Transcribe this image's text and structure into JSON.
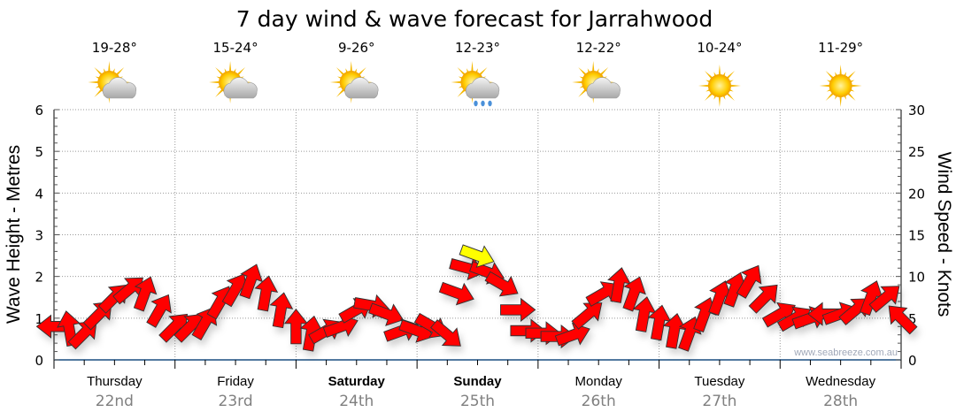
{
  "chart_data": {
    "type": "scatter",
    "title": "7 day wind & wave forecast for Jarrahwood",
    "ylabel_left": "Wave Height - Metres",
    "ylabel_right": "Wind Speed - Knots",
    "ylim_left": [
      0,
      6
    ],
    "ylim_right": [
      0,
      30
    ],
    "left_ticks": [
      "0",
      "1",
      "2",
      "3",
      "4",
      "5",
      "6"
    ],
    "right_ticks": [
      "0",
      "5",
      "10",
      "15",
      "20",
      "25",
      "30"
    ],
    "watermark": "www.seabreeze.com.au",
    "grid": true,
    "days": [
      {
        "name": "Thursday",
        "date": "22nd",
        "temp": "19-28°",
        "icon": "partly-cloudy-icon",
        "bold": false
      },
      {
        "name": "Friday",
        "date": "23rd",
        "temp": "15-24°",
        "icon": "partly-cloudy-icon",
        "bold": false
      },
      {
        "name": "Saturday",
        "date": "24th",
        "temp": "9-26°",
        "icon": "partly-cloudy-icon",
        "bold": true
      },
      {
        "name": "Sunday",
        "date": "25th",
        "temp": "12-23°",
        "icon": "rain-icon",
        "bold": true
      },
      {
        "name": "Monday",
        "date": "26th",
        "temp": "12-22°",
        "icon": "partly-cloudy-icon",
        "bold": false
      },
      {
        "name": "Tuesday",
        "date": "27th",
        "temp": "10-24°",
        "icon": "sunny-icon",
        "bold": false
      },
      {
        "name": "Wednesday",
        "date": "28th",
        "temp": "11-29°",
        "icon": "sunny-icon",
        "bold": false
      }
    ],
    "wind": [
      [
        0,
        4,
        180
      ],
      [
        3,
        3.8,
        -100
      ],
      [
        6,
        3.2,
        -45
      ],
      [
        9,
        5.5,
        -45
      ],
      [
        12,
        7.5,
        -45
      ],
      [
        15,
        8.5,
        -40
      ],
      [
        18,
        8,
        -70
      ],
      [
        21,
        6,
        -60
      ],
      [
        24,
        4,
        -45
      ],
      [
        27,
        4,
        -45
      ],
      [
        30,
        4.5,
        -60
      ],
      [
        33,
        7,
        -60
      ],
      [
        36,
        8.5,
        -60
      ],
      [
        39,
        9.5,
        -70
      ],
      [
        42,
        8,
        -80
      ],
      [
        45,
        6,
        -80
      ],
      [
        48,
        4,
        -90
      ],
      [
        51,
        3.2,
        -80
      ],
      [
        54,
        3.5,
        -30
      ],
      [
        57,
        4,
        -20
      ],
      [
        60,
        6,
        -30
      ],
      [
        63,
        6.5,
        10
      ],
      [
        66,
        5.5,
        20
      ],
      [
        69,
        3.5,
        -20
      ],
      [
        72,
        3.5,
        20
      ],
      [
        75,
        4,
        30
      ],
      [
        78,
        3,
        40
      ],
      [
        80,
        8,
        20
      ],
      [
        82,
        11,
        15
      ],
      [
        86,
        10.5,
        20
      ],
      [
        89,
        9,
        30
      ],
      [
        92,
        6,
        0
      ],
      [
        94,
        3.5,
        0
      ],
      [
        97,
        3.2,
        0
      ],
      [
        100,
        2.8,
        0
      ],
      [
        103,
        3,
        -20
      ],
      [
        106,
        5.5,
        -40
      ],
      [
        109,
        8,
        -30
      ],
      [
        112,
        9,
        -80
      ],
      [
        115,
        8,
        -70
      ],
      [
        117,
        5.5,
        -80
      ],
      [
        120,
        4.5,
        -80
      ],
      [
        123,
        3.5,
        -80
      ],
      [
        126,
        3.2,
        -70
      ],
      [
        129,
        5.5,
        -70
      ],
      [
        132,
        7.5,
        -70
      ],
      [
        135,
        8.5,
        -70
      ],
      [
        138,
        9.5,
        -60
      ],
      [
        141,
        7.5,
        -45
      ],
      [
        144,
        5.5,
        -30
      ],
      [
        147,
        5,
        -30
      ],
      [
        150,
        5,
        -20
      ],
      [
        153,
        5.5,
        180
      ],
      [
        156,
        5.5,
        -20
      ],
      [
        159,
        6,
        -40
      ],
      [
        162,
        7.5,
        -70
      ],
      [
        165,
        7.5,
        -40
      ],
      [
        168,
        5,
        -135
      ]
    ],
    "current": [
      84,
      12.5,
      20
    ],
    "colors": {
      "arrow": "#ff0000",
      "current_arrow": "#ffff00",
      "axis": "#1a4f80",
      "grid": "#999999"
    }
  }
}
